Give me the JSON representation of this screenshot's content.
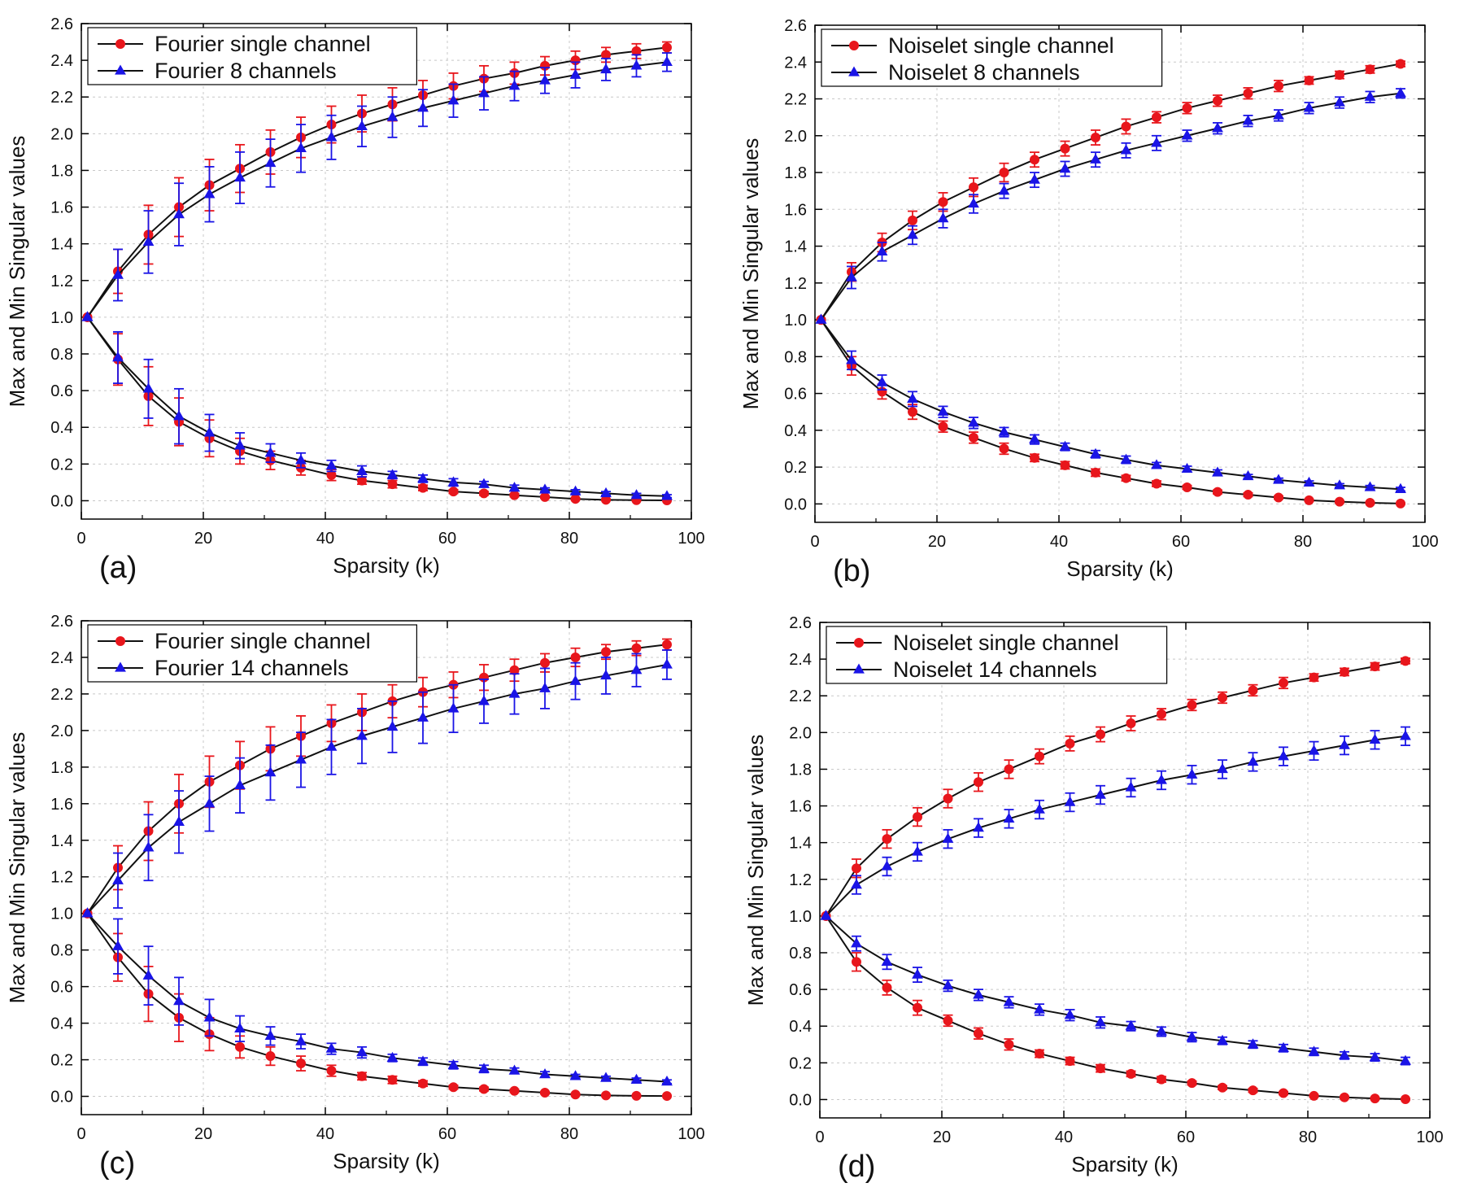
{
  "colors": {
    "single": "#e8161c",
    "multi": "#1a14e6",
    "line": "#111111",
    "grid": "#c8c8c8",
    "axis": "#000000"
  },
  "chart_data": [
    {
      "type": "line",
      "panel_label": "(a)",
      "xlabel": "Sparsity (k)",
      "ylabel": "Max and Min Singular values",
      "xlim": [
        0,
        100
      ],
      "ylim": [
        -0.1,
        2.6
      ],
      "xticks": [
        0,
        20,
        40,
        60,
        80,
        100
      ],
      "yticks": [
        0,
        0.2,
        0.4,
        0.6,
        0.8,
        1.0,
        1.2,
        1.4,
        1.6,
        1.8,
        2.0,
        2.2,
        2.4,
        2.6
      ],
      "ytick_labels": [
        "0.0",
        "0.2",
        "0.4",
        "0.6",
        "0.8",
        "1.0",
        "1.2",
        "1.4",
        "1.6",
        "1.8",
        "2.0",
        "2.2",
        "2.4",
        "2.6"
      ],
      "grid": true,
      "legend_position": "top-left",
      "x": [
        1,
        6,
        11,
        16,
        21,
        26,
        31,
        36,
        41,
        46,
        51,
        56,
        61,
        66,
        71,
        76,
        81,
        86,
        91,
        96
      ],
      "series": [
        {
          "name": "Fourier single channel",
          "marker": "circle",
          "color_key": "single",
          "max": [
            1.0,
            1.25,
            1.45,
            1.6,
            1.72,
            1.81,
            1.9,
            1.98,
            2.05,
            2.11,
            2.16,
            2.21,
            2.26,
            2.3,
            2.33,
            2.37,
            2.4,
            2.43,
            2.45,
            2.47
          ],
          "max_err": [
            0,
            0.12,
            0.16,
            0.16,
            0.14,
            0.13,
            0.12,
            0.11,
            0.1,
            0.1,
            0.09,
            0.08,
            0.07,
            0.07,
            0.06,
            0.05,
            0.05,
            0.04,
            0.04,
            0.03
          ],
          "min": [
            1.0,
            0.77,
            0.57,
            0.43,
            0.34,
            0.27,
            0.22,
            0.18,
            0.14,
            0.11,
            0.09,
            0.07,
            0.05,
            0.04,
            0.03,
            0.02,
            0.01,
            0.005,
            0.003,
            0.002
          ],
          "min_err": [
            0,
            0.14,
            0.16,
            0.13,
            0.1,
            0.07,
            0.05,
            0.04,
            0.03,
            0.02,
            0.02,
            0.015,
            0.01,
            0.01,
            0.008,
            0.006,
            0.005,
            0.004,
            0.003,
            0.002
          ]
        },
        {
          "name": "Fourier 8 channels",
          "marker": "triangle",
          "color_key": "multi",
          "max": [
            1.0,
            1.23,
            1.41,
            1.56,
            1.67,
            1.76,
            1.84,
            1.92,
            1.98,
            2.04,
            2.09,
            2.14,
            2.18,
            2.22,
            2.26,
            2.29,
            2.32,
            2.35,
            2.37,
            2.39
          ],
          "max_err": [
            0,
            0.14,
            0.17,
            0.17,
            0.15,
            0.14,
            0.13,
            0.13,
            0.12,
            0.11,
            0.11,
            0.1,
            0.09,
            0.09,
            0.08,
            0.07,
            0.07,
            0.06,
            0.06,
            0.05
          ],
          "min": [
            1.0,
            0.78,
            0.61,
            0.46,
            0.37,
            0.3,
            0.26,
            0.22,
            0.19,
            0.16,
            0.14,
            0.12,
            0.1,
            0.09,
            0.07,
            0.06,
            0.05,
            0.04,
            0.03,
            0.025
          ],
          "min_err": [
            0,
            0.14,
            0.16,
            0.15,
            0.1,
            0.07,
            0.05,
            0.04,
            0.03,
            0.03,
            0.02,
            0.02,
            0.02,
            0.015,
            0.015,
            0.01,
            0.01,
            0.01,
            0.01,
            0.008
          ]
        }
      ]
    },
    {
      "type": "line",
      "panel_label": "(b)",
      "xlabel": "Sparsity (k)",
      "ylabel": "Max and Min Singular values",
      "xlim": [
        0,
        100
      ],
      "ylim": [
        -0.1,
        2.6
      ],
      "xticks": [
        0,
        20,
        40,
        60,
        80,
        100
      ],
      "yticks": [
        0,
        0.2,
        0.4,
        0.6,
        0.8,
        1.0,
        1.2,
        1.4,
        1.6,
        1.8,
        2.0,
        2.2,
        2.4,
        2.6
      ],
      "ytick_labels": [
        "0.0",
        "0.2",
        "0.4",
        "0.6",
        "0.8",
        "1.0",
        "1.2",
        "1.4",
        "1.6",
        "1.8",
        "2.0",
        "2.2",
        "2.4",
        "2.6"
      ],
      "grid": true,
      "legend_position": "top-left",
      "x": [
        1,
        6,
        11,
        16,
        21,
        26,
        31,
        36,
        41,
        46,
        51,
        56,
        61,
        66,
        71,
        76,
        81,
        86,
        91,
        96
      ],
      "series": [
        {
          "name": "Noiselet single channel",
          "marker": "circle",
          "color_key": "single",
          "max": [
            1.0,
            1.26,
            1.42,
            1.54,
            1.64,
            1.72,
            1.8,
            1.87,
            1.93,
            1.99,
            2.05,
            2.1,
            2.15,
            2.19,
            2.23,
            2.27,
            2.3,
            2.33,
            2.36,
            2.39
          ],
          "max_err": [
            0,
            0.05,
            0.05,
            0.05,
            0.05,
            0.05,
            0.05,
            0.04,
            0.04,
            0.04,
            0.04,
            0.03,
            0.03,
            0.03,
            0.03,
            0.03,
            0.02,
            0.02,
            0.02,
            0.015
          ],
          "min": [
            1.0,
            0.75,
            0.61,
            0.5,
            0.42,
            0.36,
            0.3,
            0.25,
            0.21,
            0.17,
            0.14,
            0.11,
            0.09,
            0.065,
            0.05,
            0.035,
            0.02,
            0.012,
            0.006,
            0.002
          ],
          "min_err": [
            0,
            0.05,
            0.04,
            0.04,
            0.03,
            0.03,
            0.03,
            0.02,
            0.02,
            0.02,
            0.015,
            0.015,
            0.01,
            0.01,
            0.01,
            0.008,
            0.006,
            0.005,
            0.004,
            0.003
          ]
        },
        {
          "name": "Noiselet 8 channels",
          "marker": "triangle",
          "color_key": "multi",
          "max": [
            1.0,
            1.23,
            1.37,
            1.46,
            1.55,
            1.63,
            1.7,
            1.76,
            1.82,
            1.87,
            1.92,
            1.96,
            2.0,
            2.04,
            2.08,
            2.11,
            2.15,
            2.18,
            2.21,
            2.23
          ],
          "max_err": [
            0,
            0.06,
            0.05,
            0.05,
            0.05,
            0.05,
            0.04,
            0.04,
            0.04,
            0.04,
            0.04,
            0.04,
            0.03,
            0.03,
            0.03,
            0.03,
            0.03,
            0.03,
            0.03,
            0.025
          ],
          "min": [
            1.0,
            0.78,
            0.66,
            0.57,
            0.5,
            0.44,
            0.39,
            0.35,
            0.31,
            0.27,
            0.24,
            0.21,
            0.19,
            0.17,
            0.15,
            0.13,
            0.115,
            0.1,
            0.09,
            0.08
          ],
          "min_err": [
            0,
            0.05,
            0.04,
            0.04,
            0.03,
            0.03,
            0.025,
            0.025,
            0.02,
            0.02,
            0.02,
            0.015,
            0.015,
            0.015,
            0.01,
            0.01,
            0.01,
            0.01,
            0.01,
            0.01
          ]
        }
      ]
    },
    {
      "type": "line",
      "panel_label": "(c)",
      "xlabel": "Sparsity (k)",
      "ylabel": "Max and Min Singular values",
      "xlim": [
        0,
        100
      ],
      "ylim": [
        -0.1,
        2.6
      ],
      "xticks": [
        0,
        20,
        40,
        60,
        80,
        100
      ],
      "yticks": [
        0,
        0.2,
        0.4,
        0.6,
        0.8,
        1.0,
        1.2,
        1.4,
        1.6,
        1.8,
        2.0,
        2.2,
        2.4,
        2.6
      ],
      "ytick_labels": [
        "0.0",
        "0.2",
        "0.4",
        "0.6",
        "0.8",
        "1.0",
        "1.2",
        "1.4",
        "1.6",
        "1.8",
        "2.0",
        "2.2",
        "2.4",
        "2.6"
      ],
      "grid": true,
      "legend_position": "top-left",
      "x": [
        1,
        6,
        11,
        16,
        21,
        26,
        31,
        36,
        41,
        46,
        51,
        56,
        61,
        66,
        71,
        76,
        81,
        86,
        91,
        96
      ],
      "series": [
        {
          "name": "Fourier single channel",
          "marker": "circle",
          "color_key": "single",
          "max": [
            1.0,
            1.25,
            1.45,
            1.6,
            1.72,
            1.81,
            1.9,
            1.97,
            2.04,
            2.1,
            2.16,
            2.21,
            2.25,
            2.29,
            2.33,
            2.37,
            2.4,
            2.43,
            2.45,
            2.47
          ],
          "max_err": [
            0,
            0.12,
            0.16,
            0.16,
            0.14,
            0.13,
            0.12,
            0.11,
            0.1,
            0.1,
            0.09,
            0.08,
            0.07,
            0.07,
            0.06,
            0.05,
            0.05,
            0.04,
            0.04,
            0.03
          ],
          "min": [
            1.0,
            0.76,
            0.56,
            0.43,
            0.34,
            0.27,
            0.22,
            0.18,
            0.14,
            0.11,
            0.09,
            0.07,
            0.05,
            0.04,
            0.03,
            0.02,
            0.01,
            0.005,
            0.003,
            0.002
          ],
          "min_err": [
            0,
            0.13,
            0.15,
            0.13,
            0.09,
            0.06,
            0.05,
            0.04,
            0.03,
            0.02,
            0.02,
            0.015,
            0.01,
            0.01,
            0.008,
            0.006,
            0.005,
            0.004,
            0.003,
            0.002
          ]
        },
        {
          "name": "Fourier 14 channels",
          "marker": "triangle",
          "color_key": "multi",
          "max": [
            1.0,
            1.18,
            1.36,
            1.5,
            1.6,
            1.7,
            1.77,
            1.84,
            1.91,
            1.97,
            2.02,
            2.07,
            2.12,
            2.16,
            2.2,
            2.23,
            2.27,
            2.3,
            2.33,
            2.36
          ],
          "max_err": [
            0,
            0.15,
            0.18,
            0.17,
            0.15,
            0.15,
            0.15,
            0.15,
            0.15,
            0.15,
            0.14,
            0.14,
            0.13,
            0.12,
            0.11,
            0.11,
            0.1,
            0.1,
            0.09,
            0.08
          ],
          "min": [
            1.0,
            0.82,
            0.66,
            0.52,
            0.43,
            0.37,
            0.33,
            0.3,
            0.26,
            0.24,
            0.21,
            0.19,
            0.17,
            0.15,
            0.14,
            0.12,
            0.11,
            0.1,
            0.09,
            0.08
          ],
          "min_err": [
            0,
            0.15,
            0.16,
            0.13,
            0.1,
            0.07,
            0.05,
            0.04,
            0.03,
            0.03,
            0.02,
            0.02,
            0.02,
            0.02,
            0.015,
            0.015,
            0.01,
            0.01,
            0.01,
            0.01
          ]
        }
      ]
    },
    {
      "type": "line",
      "panel_label": "(d)",
      "xlabel": "Sparsity (k)",
      "ylabel": "Max and Min Singular values",
      "xlim": [
        0,
        100
      ],
      "ylim": [
        -0.1,
        2.6
      ],
      "xticks": [
        0,
        20,
        40,
        60,
        80,
        100
      ],
      "yticks": [
        0,
        0.2,
        0.4,
        0.6,
        0.8,
        1.0,
        1.2,
        1.4,
        1.6,
        1.8,
        2.0,
        2.2,
        2.4,
        2.6
      ],
      "ytick_labels": [
        "0.0",
        "0.2",
        "0.4",
        "0.6",
        "0.8",
        "1.0",
        "1.2",
        "1.4",
        "1.6",
        "1.8",
        "2.0",
        "2.2",
        "2.4",
        "2.6"
      ],
      "grid": true,
      "legend_position": "top-left",
      "x": [
        1,
        6,
        11,
        16,
        21,
        26,
        31,
        36,
        41,
        46,
        51,
        56,
        61,
        66,
        71,
        76,
        81,
        86,
        91,
        96
      ],
      "series": [
        {
          "name": "Noiselet single channel",
          "marker": "circle",
          "color_key": "single",
          "max": [
            1.0,
            1.26,
            1.42,
            1.54,
            1.64,
            1.73,
            1.8,
            1.87,
            1.94,
            1.99,
            2.05,
            2.1,
            2.15,
            2.19,
            2.23,
            2.27,
            2.3,
            2.33,
            2.36,
            2.39
          ],
          "max_err": [
            0,
            0.05,
            0.05,
            0.05,
            0.05,
            0.05,
            0.05,
            0.04,
            0.04,
            0.04,
            0.04,
            0.03,
            0.03,
            0.03,
            0.03,
            0.03,
            0.02,
            0.02,
            0.02,
            0.015
          ],
          "min": [
            1.0,
            0.75,
            0.61,
            0.5,
            0.43,
            0.36,
            0.3,
            0.25,
            0.21,
            0.17,
            0.14,
            0.11,
            0.09,
            0.065,
            0.05,
            0.035,
            0.02,
            0.012,
            0.006,
            0.002
          ],
          "min_err": [
            0,
            0.05,
            0.04,
            0.04,
            0.03,
            0.03,
            0.03,
            0.02,
            0.02,
            0.02,
            0.015,
            0.015,
            0.01,
            0.01,
            0.01,
            0.008,
            0.006,
            0.005,
            0.004,
            0.003
          ]
        },
        {
          "name": "Noiselet 14 channels",
          "marker": "triangle",
          "color_key": "multi",
          "max": [
            1.0,
            1.17,
            1.27,
            1.35,
            1.42,
            1.48,
            1.53,
            1.58,
            1.62,
            1.66,
            1.7,
            1.74,
            1.77,
            1.8,
            1.84,
            1.87,
            1.9,
            1.93,
            1.96,
            1.98
          ],
          "max_err": [
            0,
            0.05,
            0.05,
            0.05,
            0.05,
            0.05,
            0.05,
            0.05,
            0.05,
            0.05,
            0.05,
            0.05,
            0.05,
            0.05,
            0.05,
            0.05,
            0.05,
            0.05,
            0.05,
            0.05
          ],
          "min": [
            1.0,
            0.85,
            0.75,
            0.68,
            0.62,
            0.57,
            0.53,
            0.49,
            0.46,
            0.42,
            0.4,
            0.37,
            0.34,
            0.32,
            0.3,
            0.28,
            0.26,
            0.24,
            0.23,
            0.21
          ],
          "min_err": [
            0,
            0.04,
            0.04,
            0.04,
            0.03,
            0.03,
            0.03,
            0.03,
            0.03,
            0.03,
            0.025,
            0.025,
            0.025,
            0.02,
            0.02,
            0.02,
            0.02,
            0.02,
            0.02,
            0.02
          ]
        }
      ]
    }
  ]
}
